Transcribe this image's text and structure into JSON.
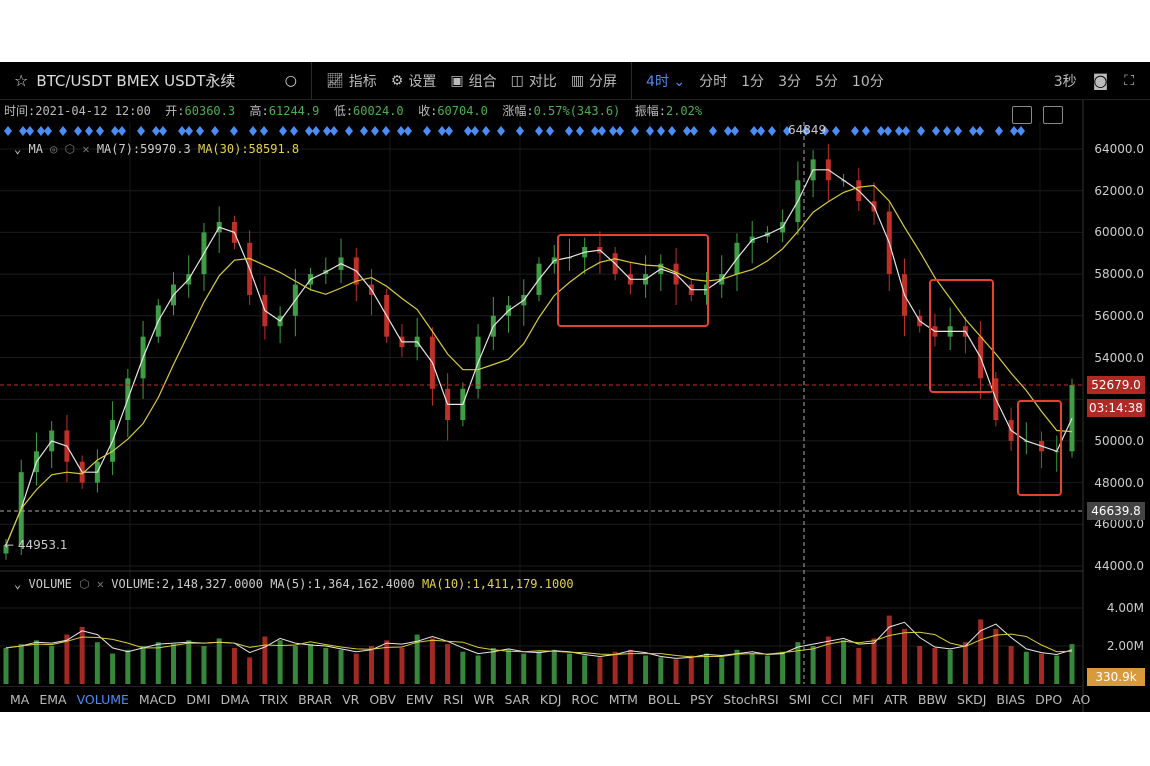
{
  "toolbar": {
    "symbol": "BTC/USDT BMEX USDT永续",
    "icons": {
      "favorite": "star-icon",
      "search": "search-icon"
    },
    "buttons": [
      {
        "label": "指标",
        "icon": "indicator-chart-icon"
      },
      {
        "label": "设置",
        "icon": "gear-icon"
      },
      {
        "label": "组合",
        "icon": "combo-icon"
      },
      {
        "label": "对比",
        "icon": "compare-icon"
      },
      {
        "label": "分屏",
        "icon": "split-screen-icon"
      }
    ],
    "timeframes": [
      {
        "label": "4时 ⌄",
        "active": true
      },
      {
        "label": "分时"
      },
      {
        "label": "1分"
      },
      {
        "label": "3分"
      },
      {
        "label": "5分"
      },
      {
        "label": "10分"
      }
    ],
    "refresh": "3秒"
  },
  "info": {
    "time_label": "时间:",
    "time": "2021-04-12 12:00",
    "open_label": "开:",
    "open": "60360.3",
    "high_label": "高:",
    "high": "61244.9",
    "low_label": "低:",
    "low": "60024.0",
    "close_label": "收:",
    "close": "60704.0",
    "change_label": "涨幅:",
    "change": "0.57%(343.6)",
    "amp_label": "振幅:",
    "amp": "2.02%"
  },
  "ma_legend": {
    "name": "MA",
    "ma7": "MA(7):59970.3",
    "ma30": "MA(30):58591.8"
  },
  "vol_legend": {
    "name": "VOLUME",
    "vol": "VOLUME:2,148,327.0000",
    "ma5": "MA(5):1,364,162.4000",
    "ma10": "MA(10):1,411,179.1000"
  },
  "price_axis": [
    "64000.0",
    "62000.0",
    "60000.0",
    "58000.0",
    "56000.0",
    "54000.0",
    "50000.0",
    "48000.0",
    "46000.0",
    "44000.0"
  ],
  "volume_axis": [
    "4.00M",
    "2.00M"
  ],
  "tags": {
    "last_price": "52679.0",
    "countdown": "03:14:38",
    "crosshair": "46639.8",
    "volume_last": "330.9k",
    "max_label": "64849",
    "min_label": "44953.1"
  },
  "colors": {
    "up": "#3f9e45",
    "down": "#c0302a",
    "ma7": "#e6e6e6",
    "ma30": "#d8cc3c",
    "accent": "#4b8df5",
    "annotation": "#e5432e",
    "marker": "#4b8df5"
  },
  "indicators": [
    "MA",
    "EMA",
    "VOLUME",
    "MACD",
    "DMI",
    "DMA",
    "TRIX",
    "BRAR",
    "VR",
    "OBV",
    "EMV",
    "RSI",
    "WR",
    "SAR",
    "KDJ",
    "ROC",
    "MTM",
    "BOLL",
    "PSY",
    "StochRSI",
    "SMI",
    "CCI",
    "MFI",
    "ATR",
    "BBW",
    "SKDJ",
    "BIAS",
    "DPO",
    "AO"
  ],
  "active_indicator": "VOLUME",
  "chart_data": {
    "type": "candlestick",
    "price_range": [
      44000,
      64500
    ],
    "close": [
      45000,
      48500,
      49500,
      50500,
      49000,
      48000,
      49000,
      51000,
      53000,
      55000,
      56500,
      57500,
      58000,
      60000,
      60500,
      59500,
      57000,
      55500,
      56000,
      57500,
      58000,
      58200,
      58800,
      57500,
      57000,
      55000,
      54500,
      55000,
      52500,
      51000,
      52500,
      55000,
      56000,
      56500,
      57000,
      58500,
      58800,
      58800,
      59300,
      59000,
      58000,
      57500,
      58000,
      58500,
      57500,
      57000,
      57500,
      58000,
      59500,
      59800,
      60000,
      60500,
      62500,
      63500,
      62500,
      62500,
      61500,
      61000,
      58000,
      56000,
      55500,
      55000,
      55500,
      55000,
      53000,
      51000,
      50000,
      50000,
      49500,
      49500,
      52679
    ],
    "volume_m": [
      1.9,
      2.1,
      2.3,
      2.0,
      2.6,
      3.0,
      2.2,
      1.6,
      1.8,
      2.0,
      2.2,
      2.1,
      2.3,
      2.0,
      2.4,
      1.9,
      1.4,
      2.5,
      2.3,
      2.0,
      2.1,
      1.9,
      1.8,
      1.6,
      2.0,
      2.3,
      1.9,
      2.6,
      2.4,
      2.1,
      1.7,
      1.5,
      1.9,
      1.8,
      1.6,
      1.7,
      1.8,
      1.6,
      1.5,
      1.4,
      1.7,
      1.8,
      1.5,
      1.4,
      1.3,
      1.5,
      1.6,
      1.4,
      1.8,
      1.6,
      1.5,
      1.7,
      2.2,
      2.0,
      2.5,
      2.3,
      1.9,
      2.4,
      3.6,
      2.9,
      2.0,
      1.9,
      1.8,
      2.2,
      3.4,
      2.9,
      2.0,
      1.7,
      1.6,
      1.5,
      2.1
    ],
    "ma_periods": [
      7,
      30
    ],
    "last_price_line": 52679.0,
    "crosshair_price": 46639.8,
    "max_marker": 64849,
    "min_marker": 44953.1
  }
}
